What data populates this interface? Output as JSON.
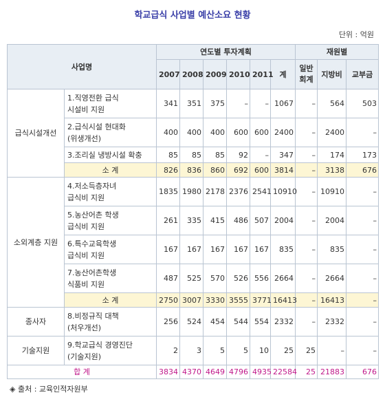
{
  "title": "학교급식 사업별 예산소요 현황",
  "unit": "단위 : 억원",
  "header": {
    "project": "사업명",
    "annual_plan": "연도별 투자계획",
    "funding": "재원별",
    "years": [
      "2007",
      "2008",
      "2009",
      "2010",
      "2011",
      "계"
    ],
    "sources": [
      "일반회계",
      "지방비",
      "교부금"
    ]
  },
  "groups": {
    "g1": {
      "category": "급식시설개선",
      "r1": {
        "item": [
          "1.직영전환 급식",
          "시설비 지원"
        ],
        "values": [
          "341",
          "351",
          "375",
          "–",
          "–",
          "1067",
          "–",
          "564",
          "503"
        ]
      },
      "r2": {
        "item": [
          "2.급식시설 현대화",
          "(위생개선)"
        ],
        "values": [
          "400",
          "400",
          "400",
          "600",
          "600",
          "2400",
          "–",
          "2400",
          "–"
        ]
      },
      "r3": {
        "item": [
          "3.조리실 냉방시설 확충"
        ],
        "values": [
          "85",
          "85",
          "85",
          "92",
          "–",
          "347",
          "–",
          "174",
          "173"
        ]
      },
      "subtotal": {
        "label": "소 계",
        "values": [
          "826",
          "836",
          "860",
          "692",
          "600",
          "3814",
          "–",
          "3138",
          "676"
        ]
      }
    },
    "g2": {
      "category": "소외계층 지원",
      "r4": {
        "item": [
          "4.저소득층자녀",
          "급식비 지원"
        ],
        "values": [
          "1835",
          "1980",
          "2178",
          "2376",
          "2541",
          "10910",
          "–",
          "10910",
          "–"
        ]
      },
      "r5": {
        "item": [
          "5.농산어촌 학생",
          "급식비 지원"
        ],
        "values": [
          "261",
          "335",
          "415",
          "486",
          "507",
          "2004",
          "–",
          "2004",
          "–"
        ]
      },
      "r6": {
        "item": [
          "6.특수교육학생",
          "급식비 지원"
        ],
        "values": [
          "167",
          "167",
          "167",
          "167",
          "167",
          "835",
          "–",
          "835",
          "–"
        ]
      },
      "r7": {
        "item": [
          "7.농산어촌학생",
          "식품비 지원"
        ],
        "values": [
          "487",
          "525",
          "570",
          "526",
          "556",
          "2664",
          "–",
          "2664",
          "–"
        ]
      },
      "subtotal": {
        "label": "소 계",
        "values": [
          "2750",
          "3007",
          "3330",
          "3555",
          "3771",
          "16413",
          "–",
          "16413",
          "–"
        ]
      }
    },
    "g3": {
      "category": "종사자",
      "r8": {
        "item": [
          "8.비정규직 대책",
          "(처우개선)"
        ],
        "values": [
          "256",
          "524",
          "454",
          "544",
          "554",
          "2332",
          "–",
          "2332",
          "–"
        ]
      }
    },
    "g4": {
      "category": "기술지원",
      "r9": {
        "item": [
          "9.학교급식 경영진단",
          "(기술지원)"
        ],
        "values": [
          "2",
          "3",
          "5",
          "5",
          "10",
          "25",
          "25",
          "–",
          "–"
        ]
      }
    }
  },
  "total": {
    "label": "합 계",
    "values": [
      "3834",
      "4370",
      "4649",
      "4796",
      "4935",
      "22584",
      "25",
      "21883",
      "676"
    ]
  },
  "source": "◈ 출처 : 교육인적자원부"
}
